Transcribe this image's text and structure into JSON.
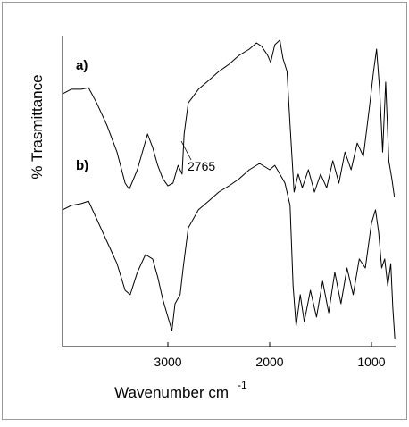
{
  "chart_data": {
    "type": "line",
    "x_label": "Wavenumber cm",
    "x_label_sup": "-1",
    "y_label": "% Trasmittance",
    "xlim": [
      4035,
      763
    ],
    "xticks": [
      3000,
      2000,
      1000
    ],
    "ylim": [
      0,
      100
    ],
    "annotations": [
      "a)",
      "b)",
      "2765"
    ],
    "series": [
      {
        "name": "a",
        "color": "#000000",
        "x": [
          4035,
          3950,
          3850,
          3780,
          3700,
          3600,
          3500,
          3420,
          3380,
          3300,
          3200,
          3150,
          3100,
          3050,
          3000,
          2950,
          2900,
          2860,
          2840,
          2800,
          2765,
          2700,
          2600,
          2500,
          2400,
          2300,
          2200,
          2130,
          2080,
          2020,
          1990,
          1950,
          1900,
          1870,
          1830,
          1800,
          1760,
          1720,
          1680,
          1620,
          1560,
          1500,
          1440,
          1380,
          1320,
          1260,
          1200,
          1140,
          1080,
          1020,
          980,
          950,
          920,
          890,
          860,
          830,
          800,
          775
        ],
        "values": [
          81.3,
          82.8,
          82.8,
          83.3,
          78.4,
          71.3,
          62.6,
          52.6,
          50.6,
          56.9,
          68.4,
          64.1,
          58.3,
          54.0,
          51.7,
          52.6,
          58.3,
          55.5,
          68.4,
          78.4,
          79.9,
          82.8,
          85.6,
          88.5,
          90.8,
          93.7,
          95.7,
          97.7,
          96.6,
          93.7,
          91.4,
          97.1,
          98.6,
          92.8,
          88.5,
          71.3,
          49.7,
          55.5,
          51.1,
          56.9,
          49.7,
          55.5,
          51.1,
          59.8,
          52.6,
          62.6,
          56.9,
          65.5,
          61.2,
          77.0,
          88.5,
          95.7,
          82.8,
          62.6,
          85.1,
          59.8,
          54.0,
          48.3
        ]
      },
      {
        "name": "b",
        "color": "#000000",
        "x": [
          4035,
          3950,
          3850,
          3780,
          3700,
          3600,
          3500,
          3420,
          3370,
          3300,
          3220,
          3150,
          3100,
          3050,
          3000,
          2960,
          2930,
          2880,
          2850,
          2800,
          2700,
          2600,
          2500,
          2400,
          2300,
          2200,
          2100,
          2000,
          1950,
          1900,
          1850,
          1800,
          1770,
          1740,
          1700,
          1660,
          1600,
          1540,
          1480,
          1420,
          1360,
          1300,
          1240,
          1180,
          1120,
          1060,
          1000,
          960,
          930,
          900,
          870,
          840,
          810,
          790,
          770
        ],
        "values": [
          44.0,
          45.4,
          46.0,
          46.8,
          41.1,
          33.9,
          26.7,
          18.1,
          16.7,
          23.9,
          29.6,
          28.2,
          22.4,
          15.2,
          9.5,
          5.2,
          13.8,
          16.7,
          25.3,
          38.2,
          44.0,
          46.8,
          49.7,
          51.7,
          54.0,
          56.9,
          58.9,
          56.9,
          58.3,
          55.5,
          52.6,
          45.4,
          19.5,
          6.6,
          16.7,
          8.0,
          18.1,
          9.5,
          21.0,
          10.9,
          23.9,
          13.8,
          25.3,
          16.7,
          28.2,
          25.3,
          39.7,
          44.0,
          36.8,
          25.3,
          28.2,
          19.5,
          26.7,
          12.4,
          2.3
        ]
      }
    ]
  }
}
